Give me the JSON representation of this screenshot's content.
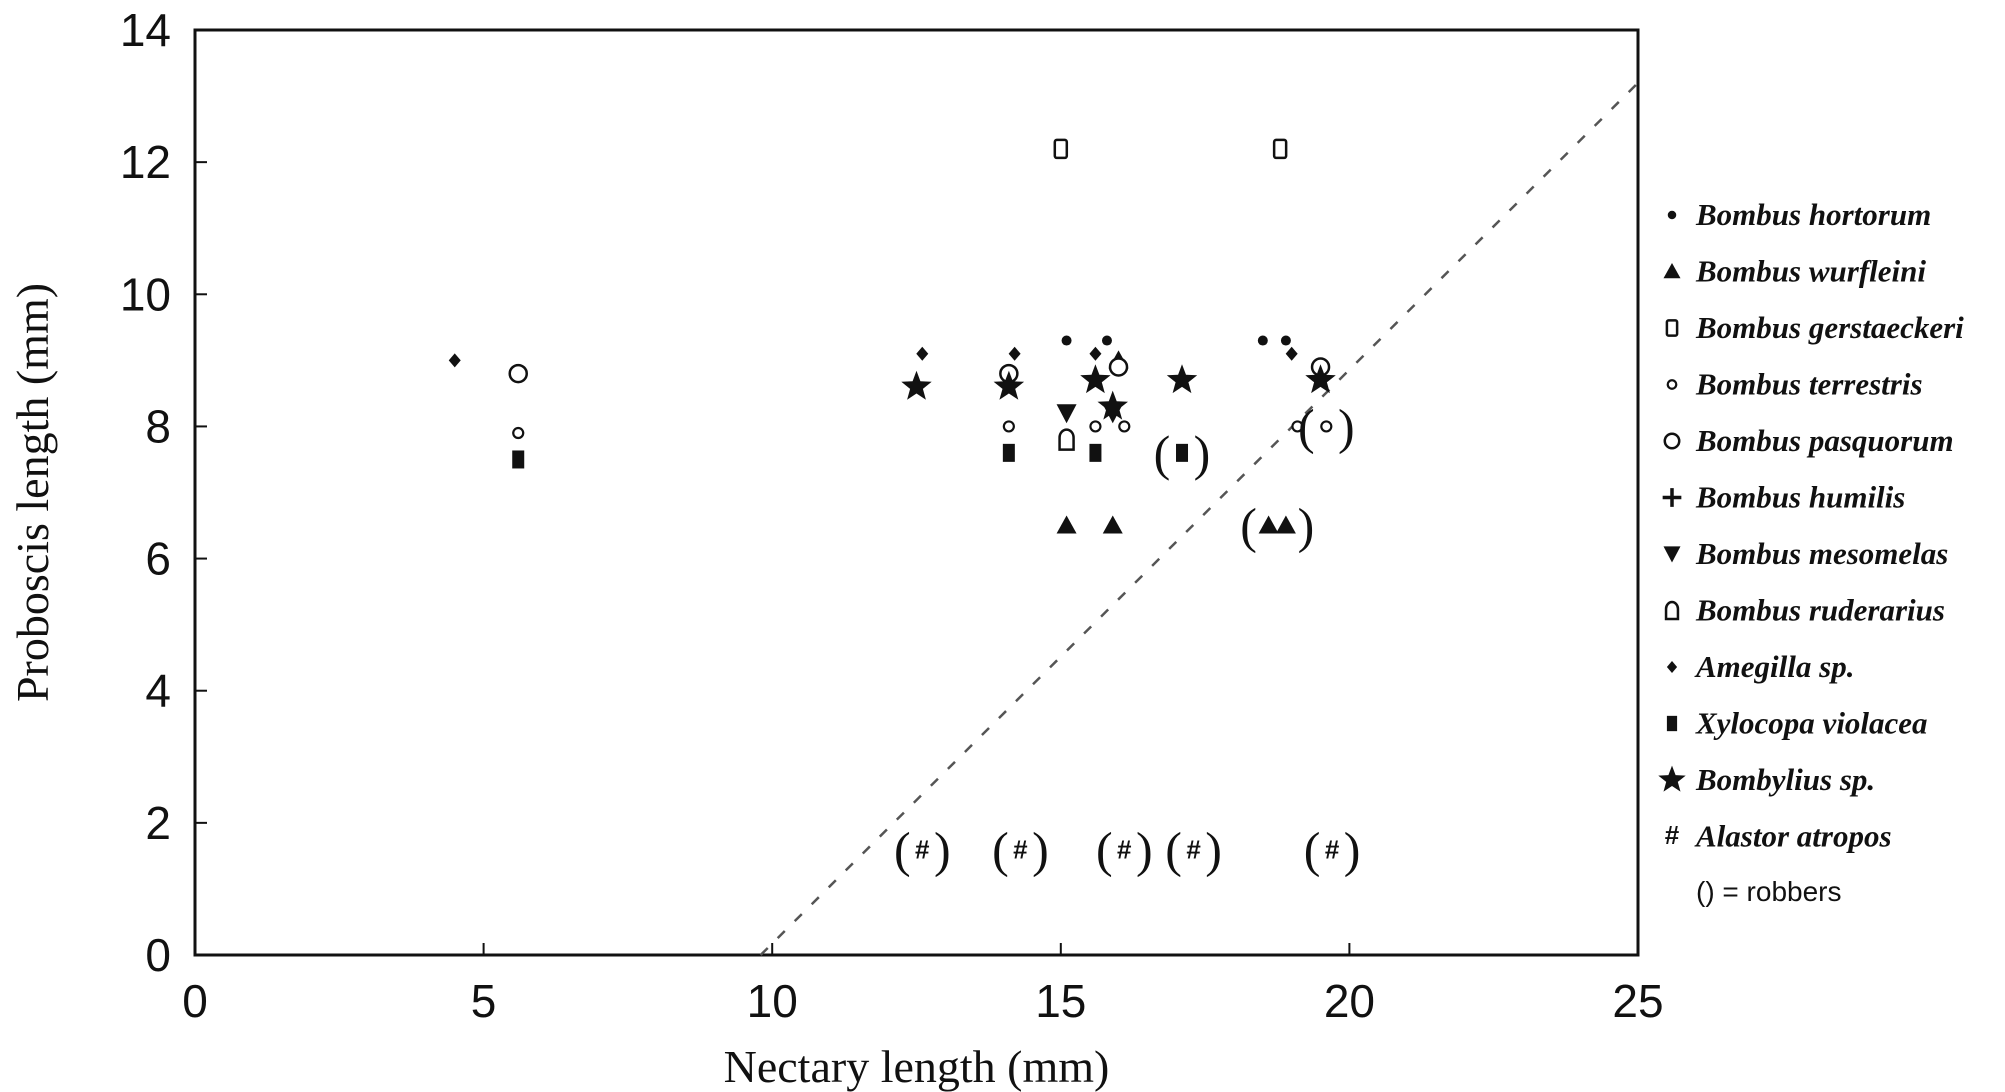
{
  "chart_data": {
    "type": "scatter",
    "title": "",
    "xlabel": "Nectary length (mm)",
    "ylabel": "Proboscis length (mm)",
    "xlim": [
      0,
      25
    ],
    "ylim": [
      0,
      14
    ],
    "xticks": [
      0,
      5,
      10,
      15,
      20,
      25
    ],
    "yticks": [
      0,
      2,
      4,
      6,
      8,
      10,
      12,
      14
    ],
    "grid": false,
    "legend_position": "right",
    "reference_line": {
      "style": "dashed",
      "points": [
        [
          9.8,
          0
        ],
        [
          25,
          13.2
        ]
      ]
    },
    "note": "() = robbers",
    "series": [
      {
        "name": "Bombus hortorum",
        "marker": "dot",
        "points": [
          {
            "x": 15.1,
            "y": 9.3
          },
          {
            "x": 15.8,
            "y": 9.3
          },
          {
            "x": 18.5,
            "y": 9.3
          },
          {
            "x": 18.9,
            "y": 9.3
          }
        ]
      },
      {
        "name": "Bombus wurfleini",
        "marker": "triangle-up",
        "points": [
          {
            "x": 15.1,
            "y": 6.5
          },
          {
            "x": 15.9,
            "y": 6.5
          },
          {
            "x": 16.0,
            "y": 9.0
          },
          {
            "x": 18.6,
            "y": 6.5,
            "robber": true
          },
          {
            "x": 18.9,
            "y": 6.5,
            "robber": true
          }
        ]
      },
      {
        "name": "Bombus gerstaeckeri",
        "marker": "square-open",
        "points": [
          {
            "x": 15.0,
            "y": 12.2
          },
          {
            "x": 18.8,
            "y": 12.2
          }
        ]
      },
      {
        "name": "Bombus terrestris",
        "marker": "small-circle-open",
        "points": [
          {
            "x": 5.6,
            "y": 7.9
          },
          {
            "x": 14.1,
            "y": 8.0
          },
          {
            "x": 15.6,
            "y": 8.0
          },
          {
            "x": 16.1,
            "y": 8.0
          },
          {
            "x": 19.1,
            "y": 8.0
          },
          {
            "x": 19.6,
            "y": 8.0,
            "robber": true
          }
        ]
      },
      {
        "name": "Bombus pasquorum",
        "marker": "circle-open",
        "points": [
          {
            "x": 5.6,
            "y": 8.8
          },
          {
            "x": 14.1,
            "y": 8.8
          },
          {
            "x": 16.0,
            "y": 8.9
          },
          {
            "x": 19.5,
            "y": 8.9
          }
        ]
      },
      {
        "name": "Bombus humilis",
        "marker": "plus",
        "points": []
      },
      {
        "name": "Bombus mesomelas",
        "marker": "triangle-down",
        "points": [
          {
            "x": 15.1,
            "y": 8.2
          },
          {
            "x": 15.9,
            "y": 8.2
          }
        ]
      },
      {
        "name": "Bombus ruderarius",
        "marker": "arch-open",
        "points": [
          {
            "x": 15.1,
            "y": 7.8
          }
        ]
      },
      {
        "name": "Amegilla sp.",
        "marker": "diamond",
        "points": [
          {
            "x": 4.5,
            "y": 9.0
          },
          {
            "x": 12.6,
            "y": 9.1
          },
          {
            "x": 14.2,
            "y": 9.1
          },
          {
            "x": 15.6,
            "y": 9.1
          },
          {
            "x": 19.0,
            "y": 9.1
          }
        ]
      },
      {
        "name": "Xylocopa violacea",
        "marker": "filled-square",
        "points": [
          {
            "x": 5.6,
            "y": 7.5
          },
          {
            "x": 14.1,
            "y": 7.6
          },
          {
            "x": 15.6,
            "y": 7.6
          },
          {
            "x": 17.1,
            "y": 7.6,
            "robber": true
          }
        ]
      },
      {
        "name": "Bombylius sp.",
        "marker": "star",
        "points": [
          {
            "x": 12.5,
            "y": 8.6
          },
          {
            "x": 14.1,
            "y": 8.6
          },
          {
            "x": 15.6,
            "y": 8.7
          },
          {
            "x": 15.9,
            "y": 8.3
          },
          {
            "x": 17.1,
            "y": 8.7
          },
          {
            "x": 19.5,
            "y": 8.7
          }
        ]
      },
      {
        "name": "Alastor atropos",
        "marker": "hash",
        "points": [
          {
            "x": 12.6,
            "y": 1.6,
            "robber": true
          },
          {
            "x": 14.3,
            "y": 1.6,
            "robber": true
          },
          {
            "x": 16.1,
            "y": 1.6,
            "robber": true
          },
          {
            "x": 17.3,
            "y": 1.6,
            "robber": true
          },
          {
            "x": 19.7,
            "y": 1.6,
            "robber": true
          }
        ]
      }
    ]
  }
}
